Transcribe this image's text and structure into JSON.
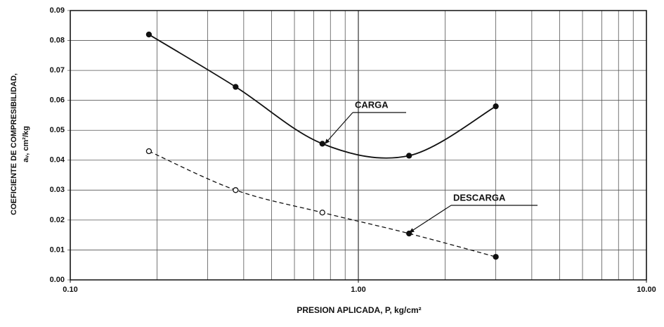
{
  "chart_data": {
    "type": "line",
    "x_label": "PRESION APLICADA, P, kg/cm²",
    "y_label_lines": [
      "COEFICIENTE DE COMPRESIBILIDAD,",
      "aᵥ, cm²/kg"
    ],
    "log_x": true,
    "xlim": [
      0.1,
      10
    ],
    "xticks": [
      {
        "value": 0.1,
        "label": "0.10"
      },
      {
        "value": 1,
        "label": "1.00"
      },
      {
        "value": 10,
        "label": "10.00"
      }
    ],
    "xminor": [
      0.2,
      0.3,
      0.4,
      0.5,
      0.6,
      0.7,
      0.8,
      0.9,
      2,
      3,
      4,
      5,
      6,
      7,
      8,
      9
    ],
    "ylim": [
      0,
      0.09
    ],
    "yticks": [
      {
        "value": 0,
        "label": "0.00"
      },
      0.01,
      0.02,
      0.03,
      0.04,
      0.05,
      0.06,
      0.07,
      0.08,
      0.09
    ],
    "grid": true,
    "series": [
      {
        "name": "CARGA",
        "color": "#111111",
        "dash": false,
        "x": [
          0.1875,
          0.375,
          0.75,
          1.5,
          3.0
        ],
        "values": [
          0.082,
          0.0645,
          0.0455,
          0.0415,
          0.058
        ]
      },
      {
        "name": "DESCARGA",
        "color": "#111111",
        "dash": true,
        "x": [
          0.1875,
          0.375,
          0.75,
          1.5,
          3.0
        ],
        "values": [
          0.043,
          0.03,
          0.0225,
          0.0155,
          0.0077
        ]
      }
    ]
  }
}
